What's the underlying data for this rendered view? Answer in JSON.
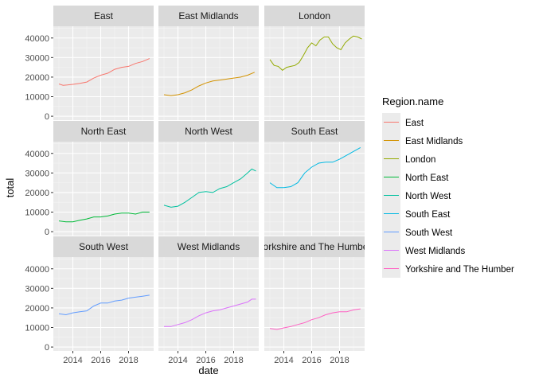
{
  "chart_data": {
    "type": "line",
    "facet": "wrap",
    "xlabel": "date",
    "ylabel": "total",
    "x_ticks": [
      "2014",
      "2016",
      "2018"
    ],
    "y_ticks": [
      "0",
      "10000",
      "20000",
      "30000",
      "40000"
    ],
    "xlim": [
      2012.6,
      2019.8
    ],
    "ylim": [
      -2000,
      46000
    ],
    "grid": true,
    "legend": {
      "title": "Region.name",
      "position": "right"
    },
    "series": [
      {
        "name": "East",
        "color": "#F8766D",
        "x": [
          2013.0,
          2013.3,
          2013.6,
          2014.0,
          2014.5,
          2015.0,
          2015.5,
          2016.0,
          2016.5,
          2017.0,
          2017.5,
          2018.0,
          2018.5,
          2019.0,
          2019.5
        ],
        "values": [
          16500,
          15800,
          16000,
          16300,
          16800,
          17500,
          19500,
          21000,
          22000,
          24000,
          25000,
          25500,
          27000,
          28000,
          29500
        ]
      },
      {
        "name": "East Midlands",
        "color": "#D39200",
        "x": [
          2013.0,
          2013.5,
          2014.0,
          2014.5,
          2015.0,
          2015.5,
          2016.0,
          2016.5,
          2017.0,
          2017.5,
          2018.0,
          2018.5,
          2019.0,
          2019.5
        ],
        "values": [
          11000,
          10500,
          11000,
          12000,
          13500,
          15500,
          17000,
          18000,
          18500,
          19000,
          19500,
          20000,
          21000,
          22500
        ]
      },
      {
        "name": "London",
        "color": "#93AA00",
        "x": [
          2013.0,
          2013.3,
          2013.6,
          2013.9,
          2014.2,
          2014.5,
          2014.8,
          2015.1,
          2015.4,
          2015.7,
          2016.0,
          2016.3,
          2016.6,
          2016.9,
          2017.2,
          2017.5,
          2017.8,
          2018.1,
          2018.4,
          2018.7,
          2019.0,
          2019.3,
          2019.6
        ],
        "values": [
          29000,
          26000,
          25500,
          23500,
          25000,
          25500,
          26000,
          27500,
          31000,
          35000,
          37500,
          36000,
          39000,
          40500,
          40500,
          37000,
          35000,
          34000,
          37500,
          39500,
          41000,
          40500,
          39500
        ]
      },
      {
        "name": "North East",
        "color": "#00BA38",
        "x": [
          2013.0,
          2013.5,
          2014.0,
          2014.5,
          2015.0,
          2015.5,
          2016.0,
          2016.5,
          2017.0,
          2017.5,
          2018.0,
          2018.5,
          2019.0,
          2019.5
        ],
        "values": [
          5500,
          5000,
          5000,
          5800,
          6500,
          7500,
          7500,
          8000,
          9000,
          9500,
          9500,
          9000,
          10000,
          10000
        ]
      },
      {
        "name": "North West",
        "color": "#00C19F",
        "x": [
          2013.0,
          2013.5,
          2014.0,
          2014.5,
          2015.0,
          2015.5,
          2016.0,
          2016.5,
          2017.0,
          2017.5,
          2018.0,
          2018.5,
          2019.0,
          2019.3,
          2019.6
        ],
        "values": [
          13500,
          12500,
          13000,
          15000,
          17500,
          20000,
          20500,
          20000,
          22000,
          23000,
          25000,
          27000,
          30000,
          32000,
          31000
        ]
      },
      {
        "name": "South East",
        "color": "#00B9E3",
        "x": [
          2013.0,
          2013.5,
          2014.0,
          2014.5,
          2015.0,
          2015.5,
          2016.0,
          2016.5,
          2017.0,
          2017.5,
          2018.0,
          2018.5,
          2019.0,
          2019.5
        ],
        "values": [
          25000,
          22500,
          22500,
          23000,
          25000,
          30000,
          33000,
          35000,
          35500,
          35500,
          37000,
          39000,
          41000,
          43000
        ]
      },
      {
        "name": "South West",
        "color": "#619CFF",
        "x": [
          2013.0,
          2013.5,
          2014.0,
          2014.5,
          2015.0,
          2015.5,
          2016.0,
          2016.5,
          2017.0,
          2017.5,
          2018.0,
          2018.5,
          2019.0,
          2019.5
        ],
        "values": [
          17000,
          16500,
          17500,
          18000,
          18500,
          21000,
          22500,
          22500,
          23500,
          24000,
          25000,
          25500,
          26000,
          26500
        ]
      },
      {
        "name": "West Midlands",
        "color": "#DB72FB",
        "x": [
          2013.0,
          2013.5,
          2014.0,
          2014.5,
          2015.0,
          2015.5,
          2016.0,
          2016.5,
          2017.0,
          2017.5,
          2018.0,
          2018.5,
          2019.0,
          2019.3,
          2019.6
        ],
        "values": [
          10500,
          10500,
          11500,
          12500,
          14000,
          16000,
          17500,
          18500,
          19000,
          20000,
          21000,
          22000,
          23000,
          24500,
          24500
        ]
      },
      {
        "name": "Yorkshire and The Humber",
        "color": "#FF61C3",
        "x": [
          2013.0,
          2013.5,
          2014.0,
          2014.5,
          2015.0,
          2015.5,
          2016.0,
          2016.5,
          2017.0,
          2017.5,
          2018.0,
          2018.5,
          2019.0,
          2019.5
        ],
        "values": [
          9500,
          9000,
          9800,
          10500,
          11500,
          12500,
          14000,
          15000,
          16500,
          17500,
          18000,
          18000,
          19000,
          19500
        ]
      }
    ]
  }
}
